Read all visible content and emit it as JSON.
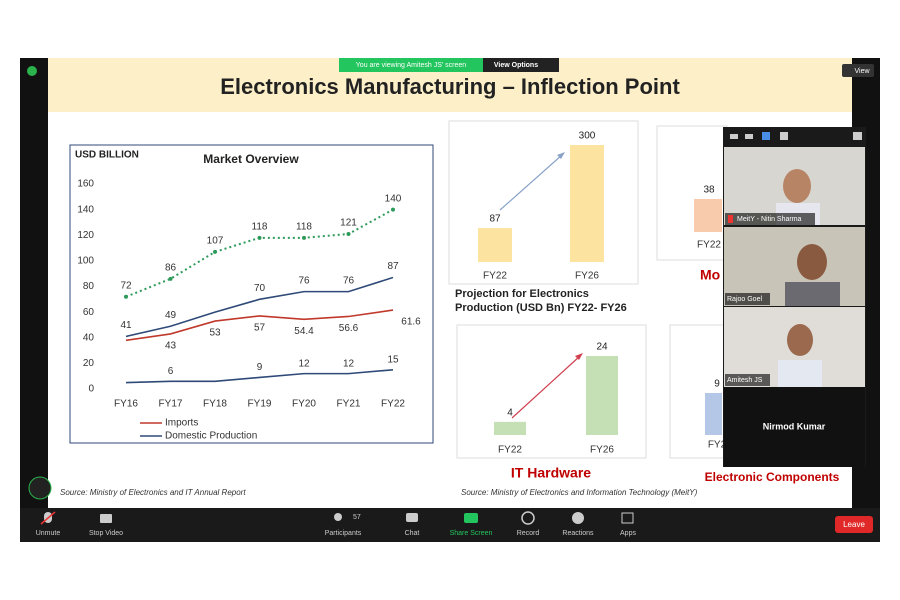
{
  "meeting": {
    "share_banner": "You are viewing Amitesh JS' screen",
    "view_options": "View Options",
    "view": "View"
  },
  "slide": {
    "title": "Electronics Manufacturing – Inflection Point",
    "source_left": "Source: Ministry of Electronics and IT Annual Report",
    "source_right": "Source: Ministry of Electronics and Information Technology (MeitY)"
  },
  "chart_data": [
    {
      "type": "line",
      "title": "Market Overview",
      "y_label": "USD BILLION",
      "categories": [
        "FY16",
        "FY17",
        "FY18",
        "FY19",
        "FY20",
        "FY21",
        "FY22"
      ],
      "ylim": [
        0,
        160
      ],
      "yticks": [
        0,
        20,
        40,
        60,
        80,
        100,
        120,
        140,
        160
      ],
      "series": [
        {
          "color": "#2e9a5a",
          "dashed": true,
          "values": [
            72,
            86,
            107,
            118,
            118,
            121,
            140
          ]
        },
        {
          "name": "Imports",
          "color": "#c0392b",
          "values": [
            38,
            43,
            53,
            57,
            54.4,
            56.6,
            61.6
          ],
          "value_labels": [
            null,
            "43",
            "53",
            "57",
            "54.4",
            "56.6",
            "61.6"
          ]
        },
        {
          "name": "Domestic Production",
          "color": "#2f4a78",
          "values": [
            41,
            49,
            60,
            70,
            76,
            76,
            87
          ],
          "value_labels": [
            "41",
            "49",
            null,
            "70",
            "76",
            "76",
            "87"
          ]
        },
        {
          "color": "#2f4a78",
          "values": [
            5,
            6,
            6,
            9,
            12,
            12,
            15
          ],
          "value_labels": [
            null,
            "6",
            null,
            "9",
            "12",
            "12",
            "15"
          ]
        }
      ]
    },
    {
      "type": "bar",
      "title_lines": [
        "Projection for Electronics",
        "Production (USD Bn)  FY22- FY26"
      ],
      "categories": [
        "FY22",
        "FY26"
      ],
      "values": [
        87,
        300
      ],
      "color": "#fce4a0"
    },
    {
      "type": "bar",
      "title": "Mo",
      "categories": [
        "FY22"
      ],
      "values": [
        38
      ],
      "color": "#f8cbad"
    },
    {
      "type": "bar",
      "title": "IT Hardware",
      "categories": [
        "FY22",
        "FY26"
      ],
      "values": [
        4,
        24
      ],
      "color": "#c5e0b4"
    },
    {
      "type": "bar",
      "title": "Electronic Components",
      "categories": [
        "FY2"
      ],
      "values": [
        9
      ],
      "color": "#b4c7e7"
    }
  ],
  "participants": [
    "MeitY - Nitin Sharma",
    "Rajoo Goel",
    "Amitesh JS",
    "Nirmod Kumar"
  ],
  "toolbar": {
    "unmute": "Unmute",
    "stop_video": "Stop Video",
    "participant_count": 57,
    "participants": "Participants",
    "chat": "Chat",
    "share_screen": "Share Screen",
    "record": "Record",
    "reactions": "Reactions",
    "apps": "Apps",
    "leave": "Leave"
  }
}
